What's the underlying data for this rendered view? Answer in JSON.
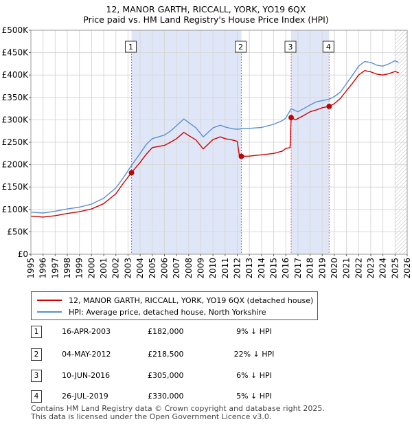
{
  "chart_data": {
    "type": "line",
    "title_line1": "12, MANOR GARTH, RICCALL, YORK, YO19 6QX",
    "title_line2": "Price paid vs. HM Land Registry's House Price Index (HPI)",
    "xlim": [
      1995,
      2026
    ],
    "ylim": [
      0,
      500000
    ],
    "y_ticks": [
      {
        "value": 0,
        "label": "£0"
      },
      {
        "value": 50000,
        "label": "£50K"
      },
      {
        "value": 100000,
        "label": "£100K"
      },
      {
        "value": 150000,
        "label": "£150K"
      },
      {
        "value": 200000,
        "label": "£200K"
      },
      {
        "value": 250000,
        "label": "£250K"
      },
      {
        "value": 300000,
        "label": "£300K"
      },
      {
        "value": 350000,
        "label": "£350K"
      },
      {
        "value": 400000,
        "label": "£400K"
      },
      {
        "value": 450000,
        "label": "£450K"
      },
      {
        "value": 500000,
        "label": "£500K"
      }
    ],
    "x_ticks": [
      "1995",
      "1996",
      "1997",
      "1998",
      "1999",
      "2000",
      "2001",
      "2002",
      "2003",
      "2004",
      "2005",
      "2006",
      "2007",
      "2008",
      "2009",
      "2010",
      "2011",
      "2012",
      "2013",
      "2014",
      "2015",
      "2016",
      "2017",
      "2018",
      "2019",
      "2020",
      "2021",
      "2022",
      "2023",
      "2024",
      "2025",
      "2026"
    ],
    "shaded_spans": [
      [
        2003.29,
        2012.34
      ],
      [
        2016.44,
        2019.57
      ]
    ],
    "future_hatch_start": 2025.0,
    "series": [
      {
        "name": "12, MANOR GARTH, RICCALL, YORK, YO19 6QX (detached house)",
        "color": "#cc0000",
        "points": [
          [
            1995,
            85000
          ],
          [
            1996,
            83000
          ],
          [
            1997,
            86000
          ],
          [
            1998,
            91000
          ],
          [
            1999,
            95000
          ],
          [
            2000,
            101000
          ],
          [
            2001,
            113000
          ],
          [
            2002,
            135000
          ],
          [
            2002.6,
            158000
          ],
          [
            2003.29,
            182000
          ],
          [
            2004,
            205000
          ],
          [
            2004.5,
            223000
          ],
          [
            2005,
            238000
          ],
          [
            2006,
            243000
          ],
          [
            2006.5,
            250000
          ],
          [
            2007,
            258000
          ],
          [
            2007.6,
            272000
          ],
          [
            2008,
            265000
          ],
          [
            2008.6,
            255000
          ],
          [
            2009.2,
            235000
          ],
          [
            2010,
            256000
          ],
          [
            2010.6,
            262000
          ],
          [
            2011,
            258000
          ],
          [
            2011.6,
            255000
          ],
          [
            2012,
            252000
          ],
          [
            2012.2,
            215000
          ],
          [
            2012.34,
            218500
          ],
          [
            2013,
            219000
          ],
          [
            2014,
            222000
          ],
          [
            2015,
            225000
          ],
          [
            2015.7,
            230000
          ],
          [
            2016.0,
            236000
          ],
          [
            2016.35,
            238000
          ],
          [
            2016.44,
            305000
          ],
          [
            2016.8,
            300000
          ],
          [
            2017.5,
            310000
          ],
          [
            2018,
            318000
          ],
          [
            2018.5,
            322000
          ],
          [
            2019,
            327000
          ],
          [
            2019.57,
            330000
          ],
          [
            2020,
            336000
          ],
          [
            2020.5,
            348000
          ],
          [
            2021,
            365000
          ],
          [
            2021.5,
            382000
          ],
          [
            2022,
            400000
          ],
          [
            2022.5,
            410000
          ],
          [
            2023,
            407000
          ],
          [
            2023.5,
            402000
          ],
          [
            2024,
            400000
          ],
          [
            2024.5,
            403000
          ],
          [
            2025,
            408000
          ],
          [
            2025.3,
            405000
          ]
        ]
      },
      {
        "name": "HPI: Average price, detached house, North Yorkshire",
        "color": "#5b8fd0",
        "points": [
          [
            1995,
            94000
          ],
          [
            1996,
            92000
          ],
          [
            1997,
            96000
          ],
          [
            1998,
            101000
          ],
          [
            1999,
            105000
          ],
          [
            2000,
            112000
          ],
          [
            2001,
            125000
          ],
          [
            2002,
            148000
          ],
          [
            2002.6,
            170000
          ],
          [
            2003.29,
            198000
          ],
          [
            2004,
            225000
          ],
          [
            2004.5,
            245000
          ],
          [
            2005,
            258000
          ],
          [
            2006,
            266000
          ],
          [
            2006.5,
            275000
          ],
          [
            2007,
            287000
          ],
          [
            2007.6,
            302000
          ],
          [
            2008,
            294000
          ],
          [
            2008.6,
            282000
          ],
          [
            2009.2,
            262000
          ],
          [
            2010,
            282000
          ],
          [
            2010.6,
            288000
          ],
          [
            2011,
            284000
          ],
          [
            2011.6,
            280000
          ],
          [
            2012,
            279000
          ],
          [
            2012.34,
            280000
          ],
          [
            2013,
            281000
          ],
          [
            2014,
            283000
          ],
          [
            2015,
            290000
          ],
          [
            2015.7,
            298000
          ],
          [
            2016.0,
            304000
          ],
          [
            2016.44,
            325000
          ],
          [
            2017,
            318000
          ],
          [
            2018,
            333000
          ],
          [
            2018.5,
            340000
          ],
          [
            2019,
            343000
          ],
          [
            2019.57,
            346000
          ],
          [
            2020,
            352000
          ],
          [
            2020.5,
            362000
          ],
          [
            2021,
            381000
          ],
          [
            2021.5,
            400000
          ],
          [
            2022,
            420000
          ],
          [
            2022.5,
            430000
          ],
          [
            2023,
            428000
          ],
          [
            2023.5,
            422000
          ],
          [
            2024,
            420000
          ],
          [
            2024.5,
            425000
          ],
          [
            2025,
            432000
          ],
          [
            2025.3,
            428000
          ]
        ]
      }
    ],
    "transactions": [
      {
        "num": "1",
        "x": 2003.29,
        "price_value": 182000,
        "date": "16-APR-2003",
        "price": "£182,000",
        "diff": "9% ↓ HPI"
      },
      {
        "num": "2",
        "x": 2012.34,
        "price_value": 218500,
        "date": "04-MAY-2012",
        "price": "£218,500",
        "diff": "22% ↓ HPI"
      },
      {
        "num": "3",
        "x": 2016.44,
        "price_value": 305000,
        "date": "10-JUN-2016",
        "price": "£305,000",
        "diff": "6% ↓ HPI"
      },
      {
        "num": "4",
        "x": 2019.57,
        "price_value": 330000,
        "date": "26-JUL-2019",
        "price": "£330,000",
        "diff": "5% ↓ HPI"
      }
    ]
  },
  "legend": {
    "property_label": "12, MANOR GARTH, RICCALL, YORK, YO19 6QX (detached house)",
    "hpi_label": "HPI: Average price, detached house, North Yorkshire",
    "property_color": "#cc0000",
    "hpi_color": "#5b8fd0"
  },
  "footer": {
    "line1": "Contains HM Land Registry data © Crown copyright and database right 2025.",
    "line2": "This data is licensed under the Open Government Licence v3.0."
  }
}
